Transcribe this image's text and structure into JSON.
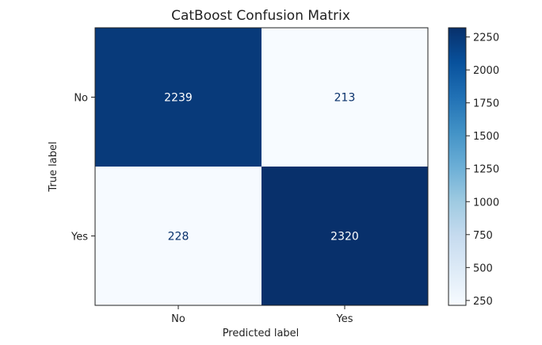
{
  "chart_data": {
    "type": "heatmap",
    "title": "CatBoost Confusion Matrix",
    "xlabel": "Predicted label",
    "ylabel": "True label",
    "x_categories": [
      "No",
      "Yes"
    ],
    "y_categories": [
      "No",
      "Yes"
    ],
    "values": [
      [
        2239,
        213
      ],
      [
        228,
        2320
      ]
    ],
    "colormap": "Blues",
    "color_range": [
      213,
      2320
    ],
    "colorbar_ticks": [
      250,
      500,
      750,
      1000,
      1250,
      1500,
      1750,
      2000,
      2250
    ],
    "colorbar_tick_labels": [
      "250",
      "500",
      "750",
      "1000",
      "1250",
      "1500",
      "1750",
      "2000",
      "2250"
    ],
    "colors": {
      "low": "#f7fbff",
      "high": "#08306b",
      "text_on_dark": "#ffffff",
      "text_on_light": "#08306b"
    }
  }
}
